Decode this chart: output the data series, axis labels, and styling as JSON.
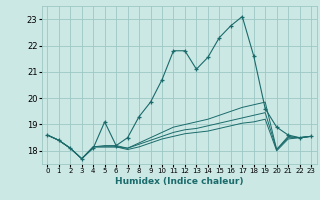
{
  "xlabel": "Humidex (Indice chaleur)",
  "ylabel": "",
  "xlim": [
    -0.5,
    23.5
  ],
  "ylim": [
    17.5,
    23.5
  ],
  "yticks": [
    18,
    19,
    20,
    21,
    22,
    23
  ],
  "xticks": [
    0,
    1,
    2,
    3,
    4,
    5,
    6,
    7,
    8,
    9,
    10,
    11,
    12,
    13,
    14,
    15,
    16,
    17,
    18,
    19,
    20,
    21,
    22,
    23
  ],
  "bg_color": "#cce8e5",
  "grid_color": "#9dc8c5",
  "line_color": "#1a6b6b",
  "lines": [
    {
      "x": [
        0,
        1,
        2,
        3,
        4,
        5,
        6,
        7,
        8,
        9,
        10,
        11,
        12,
        13,
        14,
        15,
        16,
        17,
        18,
        19,
        20,
        21,
        22,
        23
      ],
      "y": [
        18.6,
        18.4,
        18.1,
        17.7,
        18.1,
        19.1,
        18.2,
        18.5,
        19.3,
        19.85,
        20.7,
        21.8,
        21.8,
        21.1,
        21.55,
        22.3,
        22.75,
        23.1,
        21.6,
        19.6,
        18.9,
        18.6,
        18.5,
        18.55
      ],
      "marker": "+"
    },
    {
      "x": [
        0,
        1,
        2,
        3,
        4,
        5,
        6,
        7,
        8,
        9,
        10,
        11,
        12,
        13,
        14,
        15,
        16,
        17,
        18,
        19,
        20,
        21,
        22,
        23
      ],
      "y": [
        18.6,
        18.4,
        18.1,
        17.7,
        18.15,
        18.2,
        18.2,
        18.1,
        18.3,
        18.5,
        18.7,
        18.9,
        19.0,
        19.1,
        19.2,
        19.35,
        19.5,
        19.65,
        19.75,
        19.85,
        18.05,
        18.55,
        18.5,
        18.55
      ],
      "marker": null
    },
    {
      "x": [
        0,
        1,
        2,
        3,
        4,
        5,
        6,
        7,
        8,
        9,
        10,
        11,
        12,
        13,
        14,
        15,
        16,
        17,
        18,
        19,
        20,
        21,
        22,
        23
      ],
      "y": [
        18.6,
        18.4,
        18.1,
        17.7,
        18.15,
        18.15,
        18.15,
        18.1,
        18.25,
        18.4,
        18.55,
        18.7,
        18.8,
        18.85,
        18.95,
        19.05,
        19.15,
        19.25,
        19.35,
        19.45,
        18.05,
        18.5,
        18.5,
        18.55
      ],
      "marker": null
    },
    {
      "x": [
        0,
        1,
        2,
        3,
        4,
        5,
        6,
        7,
        8,
        9,
        10,
        11,
        12,
        13,
        14,
        15,
        16,
        17,
        18,
        19,
        20,
        21,
        22,
        23
      ],
      "y": [
        18.6,
        18.4,
        18.1,
        17.7,
        18.15,
        18.15,
        18.15,
        18.05,
        18.15,
        18.3,
        18.45,
        18.55,
        18.65,
        18.7,
        18.75,
        18.85,
        18.95,
        19.05,
        19.1,
        19.2,
        18.0,
        18.45,
        18.5,
        18.55
      ],
      "marker": null
    }
  ]
}
